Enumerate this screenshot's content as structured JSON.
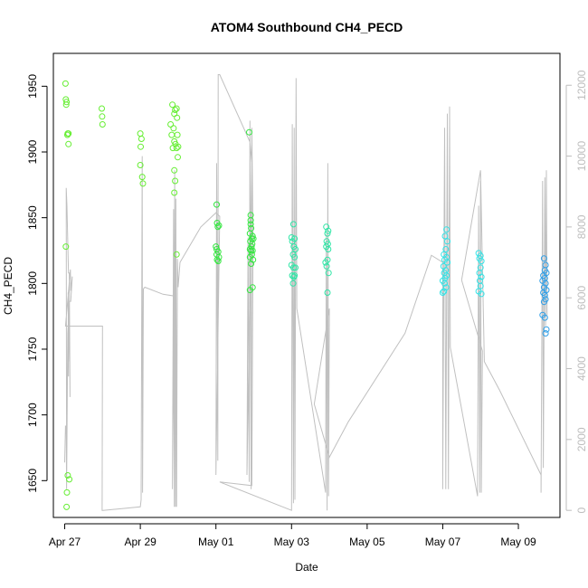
{
  "chart_data": {
    "type": "scatter",
    "title": "ATOM4 Southbound CH4_PECD",
    "xlabel": "Date",
    "ylabel": "CH4_PECD",
    "xlim": [
      -0.3,
      13.1
    ],
    "ylim": [
      1622,
      1975
    ],
    "y2lim": [
      -200,
      12900
    ],
    "grid": false,
    "legend": "none",
    "x_ticks": [
      {
        "value": 0,
        "label": "Apr 27"
      },
      {
        "value": 2,
        "label": "Apr 29"
      },
      {
        "value": 4,
        "label": "May 01"
      },
      {
        "value": 6,
        "label": "May 03"
      },
      {
        "value": 8,
        "label": "May 05"
      },
      {
        "value": 10,
        "label": "May 07"
      },
      {
        "value": 12,
        "label": "May 09"
      }
    ],
    "y_ticks": [
      1650,
      1700,
      1750,
      1800,
      1850,
      1900,
      1950
    ],
    "y2_ticks": [
      0,
      2000,
      4000,
      6000,
      8000,
      10000,
      12000
    ],
    "series": [
      {
        "color": "#66ee33",
        "points": [
          [
            0.02,
            1952
          ],
          [
            0.03,
            1940
          ],
          [
            0.05,
            1938
          ],
          [
            0.04,
            1936
          ],
          [
            0.08,
            1914
          ],
          [
            0.1,
            1914
          ],
          [
            0.07,
            1913
          ],
          [
            0.1,
            1906
          ],
          [
            0.03,
            1828
          ],
          [
            0.08,
            1654
          ],
          [
            0.12,
            1651
          ],
          [
            0.06,
            1641
          ],
          [
            0.05,
            1630
          ],
          [
            0.98,
            1933
          ],
          [
            0.99,
            1927
          ],
          [
            1.0,
            1921
          ],
          [
            2.0,
            1914
          ],
          [
            2.03,
            1910
          ],
          [
            2.01,
            1904
          ],
          [
            2.0,
            1890
          ],
          [
            2.05,
            1881
          ],
          [
            2.07,
            1876
          ],
          [
            2.85,
            1936
          ],
          [
            2.92,
            1932
          ],
          [
            2.96,
            1933
          ],
          [
            2.9,
            1929
          ],
          [
            2.97,
            1926
          ],
          [
            2.8,
            1921
          ],
          [
            2.88,
            1918
          ],
          [
            2.83,
            1913
          ],
          [
            2.98,
            1913
          ],
          [
            2.9,
            1908
          ],
          [
            2.93,
            1906
          ],
          [
            2.86,
            1903
          ],
          [
            2.96,
            1903
          ],
          [
            3.0,
            1904
          ],
          [
            2.99,
            1896
          ],
          [
            2.9,
            1886
          ],
          [
            2.92,
            1878
          ],
          [
            2.9,
            1869
          ],
          [
            2.96,
            1822
          ]
        ]
      },
      {
        "color": "#33e63f",
        "points": [
          [
            4.02,
            1860
          ],
          [
            4.03,
            1846
          ],
          [
            4.08,
            1844
          ],
          [
            4.05,
            1843
          ],
          [
            4.0,
            1828
          ],
          [
            4.02,
            1826
          ],
          [
            4.06,
            1824
          ],
          [
            4.02,
            1822
          ],
          [
            4.08,
            1820
          ],
          [
            4.03,
            1818
          ],
          [
            4.06,
            1817
          ],
          [
            4.88,
            1915
          ],
          [
            4.92,
            1852
          ],
          [
            4.92,
            1848
          ],
          [
            4.92,
            1845
          ],
          [
            4.93,
            1842
          ],
          [
            4.9,
            1838
          ],
          [
            4.97,
            1836
          ],
          [
            4.95,
            1834
          ],
          [
            4.99,
            1834
          ],
          [
            4.91,
            1832
          ],
          [
            4.96,
            1830
          ],
          [
            4.94,
            1828
          ],
          [
            4.9,
            1826
          ],
          [
            4.93,
            1825
          ],
          [
            4.97,
            1825
          ],
          [
            4.95,
            1822
          ],
          [
            4.9,
            1820
          ],
          [
            4.98,
            1818
          ],
          [
            4.93,
            1815
          ],
          [
            4.97,
            1797
          ],
          [
            4.9,
            1795
          ]
        ]
      },
      {
        "color": "#2ee6a6",
        "points": [
          [
            6.05,
            1845
          ],
          [
            6.0,
            1835
          ],
          [
            6.08,
            1834
          ],
          [
            6.02,
            1832
          ],
          [
            6.06,
            1828
          ],
          [
            6.1,
            1826
          ],
          [
            6.04,
            1822
          ],
          [
            6.08,
            1820
          ],
          [
            6.0,
            1814
          ],
          [
            6.05,
            1812
          ],
          [
            6.1,
            1812
          ],
          [
            6.02,
            1806
          ],
          [
            6.08,
            1806
          ],
          [
            6.06,
            1805
          ],
          [
            6.04,
            1800
          ],
          [
            6.92,
            1843
          ],
          [
            6.97,
            1840
          ],
          [
            6.95,
            1838
          ],
          [
            6.93,
            1832
          ],
          [
            6.96,
            1830
          ],
          [
            6.92,
            1828
          ],
          [
            6.97,
            1826
          ],
          [
            6.95,
            1818
          ],
          [
            6.9,
            1816
          ],
          [
            6.93,
            1813
          ],
          [
            6.98,
            1808
          ],
          [
            6.95,
            1793
          ]
        ]
      },
      {
        "color": "#33e3e6",
        "points": [
          [
            10.1,
            1841
          ],
          [
            10.06,
            1836
          ],
          [
            10.12,
            1832
          ],
          [
            10.08,
            1826
          ],
          [
            10.03,
            1822
          ],
          [
            10.1,
            1820
          ],
          [
            10.05,
            1818
          ],
          [
            10.12,
            1816
          ],
          [
            10.02,
            1813
          ],
          [
            10.08,
            1810
          ],
          [
            10.04,
            1808
          ],
          [
            10.1,
            1806
          ],
          [
            10.06,
            1804
          ],
          [
            10.0,
            1802
          ],
          [
            10.05,
            1800
          ],
          [
            10.09,
            1797
          ],
          [
            10.03,
            1794
          ],
          [
            10.0,
            1793
          ],
          [
            10.95,
            1823
          ],
          [
            11.0,
            1821
          ],
          [
            10.97,
            1819
          ],
          [
            11.02,
            1817
          ],
          [
            11.0,
            1812
          ],
          [
            10.97,
            1808
          ],
          [
            11.02,
            1805
          ],
          [
            10.98,
            1802
          ],
          [
            11.0,
            1798
          ],
          [
            10.95,
            1794
          ],
          [
            11.02,
            1792
          ]
        ]
      },
      {
        "color": "#2f9fe8",
        "points": [
          [
            12.68,
            1819
          ],
          [
            12.72,
            1814
          ],
          [
            12.7,
            1810
          ],
          [
            12.74,
            1808
          ],
          [
            12.66,
            1806
          ],
          [
            12.7,
            1804
          ],
          [
            12.64,
            1802
          ],
          [
            12.72,
            1800
          ],
          [
            12.68,
            1797
          ],
          [
            12.74,
            1795
          ],
          [
            12.66,
            1793
          ],
          [
            12.7,
            1791
          ],
          [
            12.72,
            1788
          ],
          [
            12.68,
            1786
          ],
          [
            12.64,
            1776
          ],
          [
            12.7,
            1774
          ],
          [
            12.74,
            1765
          ],
          [
            12.72,
            1762
          ]
        ]
      }
    ],
    "line_series": {
      "color": "#c0c0c0",
      "axis": "right",
      "points": [
        [
          0.0,
          1350
        ],
        [
          0.02,
          2380
        ],
        [
          0.04,
          2380
        ],
        [
          0.05,
          600
        ],
        [
          0.08,
          4900
        ],
        [
          0.12,
          4950
        ],
        [
          0.13,
          4200
        ],
        [
          0.09,
          6150
        ],
        [
          0.1,
          3780
        ],
        [
          0.1,
          5400
        ],
        [
          0.08,
          5000
        ],
        [
          0.05,
          1200
        ],
        [
          0.04,
          9100
        ],
        [
          0.06,
          8600
        ],
        [
          0.1,
          6700
        ],
        [
          0.12,
          6700
        ],
        [
          0.14,
          3200
        ],
        [
          0.12,
          5900
        ],
        [
          0.16,
          5900
        ],
        [
          0.2,
          6600
        ],
        [
          0.16,
          6200
        ],
        [
          0.15,
          6800
        ],
        [
          0.02,
          5200
        ],
        [
          0.98,
          5200
        ],
        [
          1.0,
          5200
        ],
        [
          0.99,
          0
        ],
        [
          1.01,
          0
        ],
        [
          2.0,
          100
        ],
        [
          2.02,
          300
        ],
        [
          2.05,
          10000
        ],
        [
          2.06,
          500
        ],
        [
          2.08,
          6250
        ],
        [
          2.12,
          6300
        ],
        [
          2.6,
          6100
        ],
        [
          2.9,
          6050
        ],
        [
          2.85,
          600
        ],
        [
          2.88,
          8500
        ],
        [
          2.9,
          100
        ],
        [
          2.91,
          9600
        ],
        [
          2.93,
          100
        ],
        [
          2.94,
          8800
        ],
        [
          2.96,
          100
        ],
        [
          2.98,
          7100
        ],
        [
          3.0,
          6300
        ],
        [
          3.05,
          7000
        ],
        [
          3.6,
          8000
        ],
        [
          3.9,
          8300
        ],
        [
          4.0,
          8400
        ],
        [
          4.1,
          8300
        ],
        [
          4.0,
          1000
        ],
        [
          4.02,
          9800
        ],
        [
          4.05,
          1400
        ],
        [
          4.06,
          12300
        ],
        [
          4.1,
          12300
        ],
        [
          4.9,
          10400
        ],
        [
          4.95,
          9800
        ],
        [
          4.82,
          1000
        ],
        [
          4.85,
          7700
        ],
        [
          4.88,
          800
        ],
        [
          4.9,
          11000
        ],
        [
          4.93,
          600
        ],
        [
          4.95,
          10800
        ],
        [
          4.98,
          7700
        ],
        [
          4.95,
          700
        ],
        [
          4.1,
          800
        ],
        [
          6.0,
          0
        ],
        [
          6.02,
          10900
        ],
        [
          6.05,
          200
        ],
        [
          6.07,
          10800
        ],
        [
          6.09,
          300
        ],
        [
          6.12,
          12200
        ],
        [
          6.14,
          5700
        ],
        [
          6.9,
          500
        ],
        [
          6.92,
          7800
        ],
        [
          6.94,
          0
        ],
        [
          6.96,
          9800
        ],
        [
          6.98,
          400
        ],
        [
          7.0,
          5700
        ],
        [
          6.6,
          3000
        ],
        [
          7.0,
          1500
        ],
        [
          7.5,
          2500
        ],
        [
          9.0,
          5000
        ],
        [
          9.7,
          7200
        ],
        [
          10.0,
          7000
        ],
        [
          10.0,
          600
        ],
        [
          10.05,
          10800
        ],
        [
          10.08,
          600
        ],
        [
          10.12,
          11200
        ],
        [
          10.15,
          600
        ],
        [
          10.18,
          11400
        ],
        [
          10.2,
          4600
        ],
        [
          10.92,
          400
        ],
        [
          10.95,
          8600
        ],
        [
          10.98,
          500
        ],
        [
          11.0,
          9300
        ],
        [
          11.02,
          500
        ],
        [
          11.05,
          4500
        ],
        [
          10.5,
          6500
        ],
        [
          11.0,
          9600
        ],
        [
          11.1,
          4200
        ],
        [
          11.5,
          3400
        ],
        [
          12.6,
          1000
        ],
        [
          12.6,
          500
        ],
        [
          12.64,
          9300
        ],
        [
          12.66,
          1200
        ],
        [
          12.7,
          9400
        ],
        [
          12.72,
          5200
        ],
        [
          12.74,
          9600
        ],
        [
          12.76,
          5500
        ]
      ]
    }
  }
}
